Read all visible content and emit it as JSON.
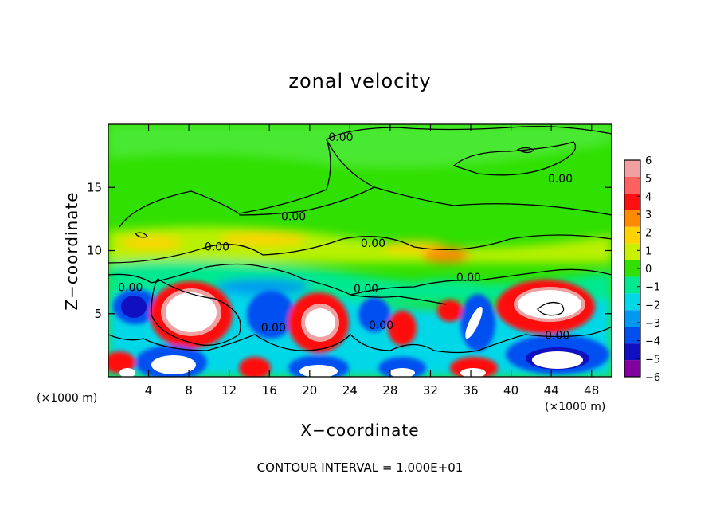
{
  "chart_data": {
    "type": "heatmap",
    "title": "zonal velocity",
    "xlabel": "X−coordinate",
    "ylabel": "Z−coordinate",
    "x_unit_left": "(×1000 m)",
    "x_unit_right": "(×1000 m)",
    "xlim": [
      0,
      50
    ],
    "ylim": [
      0,
      20
    ],
    "x_ticks": [
      4,
      8,
      12,
      16,
      20,
      24,
      28,
      32,
      36,
      40,
      44,
      48
    ],
    "y_ticks": [
      5,
      10,
      15
    ],
    "colorbar": {
      "levels": [
        6,
        5,
        4,
        3,
        2,
        1,
        0,
        -1,
        -2,
        -3,
        -4,
        -5,
        -6
      ],
      "tick_labels": [
        "6",
        "5",
        "4",
        "3",
        "2",
        "1",
        "0",
        "−1",
        "−2",
        "−3",
        "−4",
        "−5",
        "−6"
      ],
      "colors": [
        "#f0a0a0",
        "#ff6060",
        "#ff1010",
        "#ff8a00",
        "#ffd200",
        "#c8f000",
        "#30e000",
        "#00e890",
        "#00d8e8",
        "#0098f0",
        "#0050f0",
        "#1010c0",
        "#8000a0"
      ]
    },
    "contour_labels": [
      {
        "text": "0.00",
        "x": 18.4,
        "z": 12.7
      },
      {
        "text": "0.00",
        "x": 10.8,
        "z": 10.3
      },
      {
        "text": "0.00",
        "x": 2.2,
        "z": 7.1
      },
      {
        "text": "0.00",
        "x": 16.4,
        "z": 3.9
      },
      {
        "text": "0.00",
        "x": 23.1,
        "z": 19.0
      },
      {
        "text": "0.00",
        "x": 26.3,
        "z": 10.6
      },
      {
        "text": "0.00",
        "x": 25.6,
        "z": 7.0
      },
      {
        "text": "0.00",
        "x": 27.1,
        "z": 4.1
      },
      {
        "text": "0.00",
        "x": 35.8,
        "z": 7.9
      },
      {
        "text": "0.00",
        "x": 44.9,
        "z": 15.7
      },
      {
        "text": "0.00",
        "x": 44.6,
        "z": 3.3
      }
    ],
    "footer": "CONTOUR INTERVAL = 1.000E+01"
  }
}
